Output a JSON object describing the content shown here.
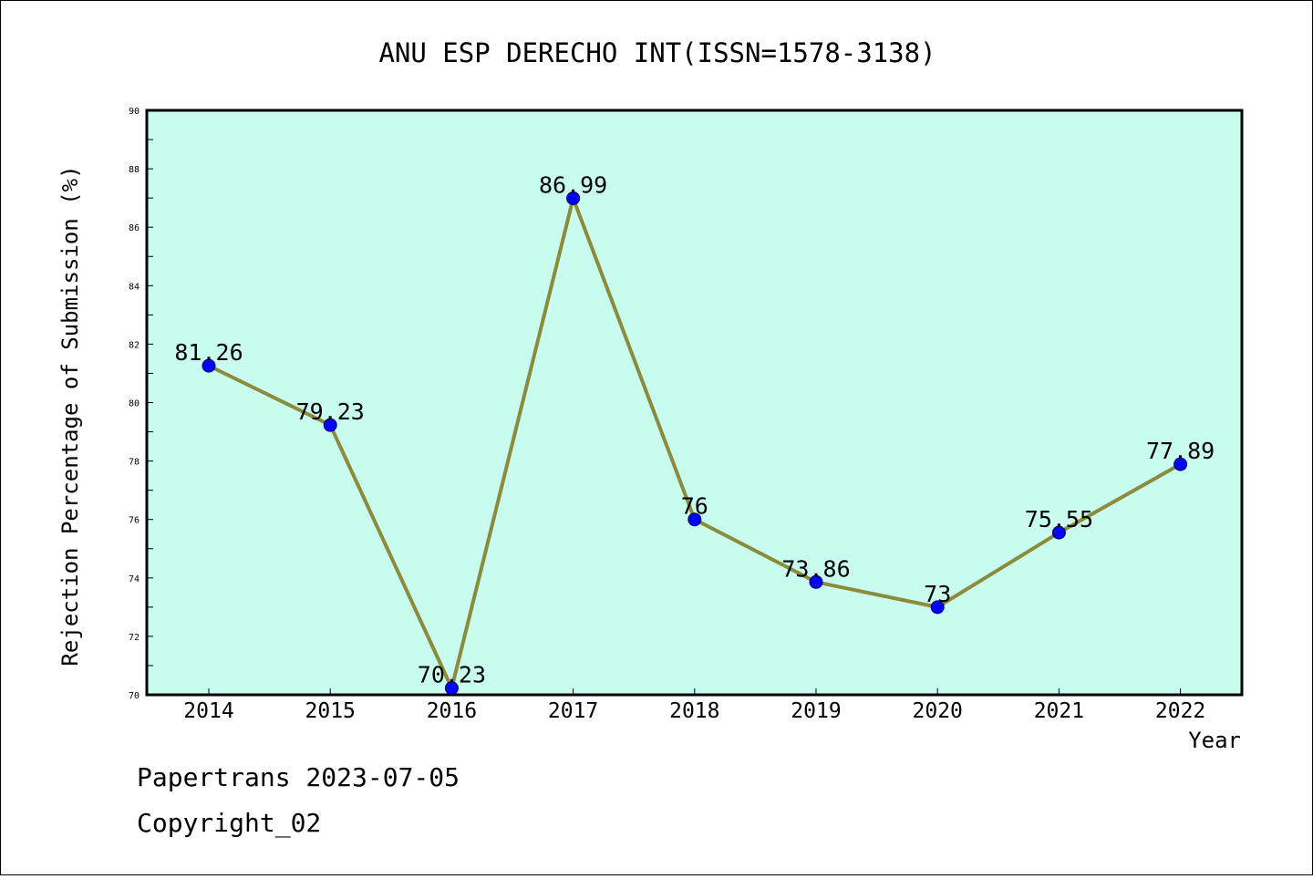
{
  "chart_data": {
    "type": "line",
    "title": "ANU ESP DERECHO INT(ISSN=1578-3138)",
    "xlabel": "Year",
    "ylabel": "Rejection Percentage of Submission (%)",
    "x": [
      "2014",
      "2015",
      "2016",
      "2017",
      "2018",
      "2019",
      "2020",
      "2021",
      "2022"
    ],
    "y": [
      81.26,
      79.23,
      70.23,
      86.99,
      76,
      73.86,
      73,
      75.55,
      77.89
    ],
    "data_labels": [
      "81.26",
      "79.23",
      "70.23",
      "86.99",
      "76",
      "73.86",
      "73",
      "75.55",
      "77.89"
    ],
    "ylim": [
      70,
      90
    ],
    "yticks": [
      70,
      72,
      74,
      76,
      78,
      80,
      82,
      84,
      86,
      88,
      90
    ],
    "grid": false,
    "colors": {
      "plot_background": "#c8fcee",
      "line": "#8b8b3a",
      "marker": "#0000ff"
    }
  },
  "footer": {
    "line1": "Papertrans 2023-07-05",
    "line2": "Copyright_02"
  }
}
